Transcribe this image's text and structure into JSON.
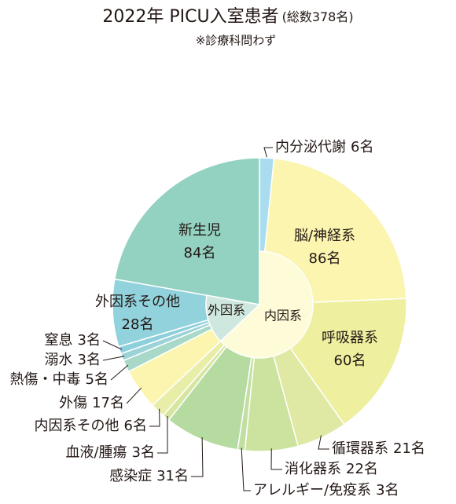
{
  "chart_data": {
    "type": "donut",
    "title": "2022年 PICU入室患者",
    "total_label": "(総数378名)",
    "subtitle": "※診療科問わず",
    "categories": [
      "内分泌代謝",
      "脳/神経系",
      "呼吸器系",
      "循環器系",
      "消化器系",
      "アレルギー/免疫系",
      "感染症",
      "血液/腫瘍",
      "内因系その他",
      "外傷",
      "熱傷・中毒",
      "溺水",
      "窒息",
      "外因系その他",
      "新生児"
    ],
    "values": [
      6,
      86,
      60,
      21,
      22,
      3,
      31,
      3,
      6,
      17,
      5,
      3,
      3,
      28,
      84
    ],
    "value_labels": [
      "6名",
      "86名",
      "60名",
      "21名",
      "22名",
      "3名",
      "31名",
      "3名",
      "6名",
      "17名",
      "5名",
      "3名",
      "3名",
      "28名",
      "84名"
    ],
    "colors": [
      "#aadcef",
      "#fbf5b0",
      "#eef0a0",
      "#dfe9a4",
      "#cce39f",
      "#c1dfa0",
      "#b5dba0",
      "#d6e6a0",
      "#e8eda8",
      "#fbf5b0",
      "#a7d8c8",
      "#9bd3d8",
      "#8ecfdc",
      "#91d2dc",
      "#93d1c1"
    ],
    "inner": {
      "labels": [
        "内因系",
        "外因系"
      ],
      "values": [
        238,
        56
      ],
      "colors": [
        "#fdfbd8",
        "#cfe8df"
      ]
    }
  }
}
